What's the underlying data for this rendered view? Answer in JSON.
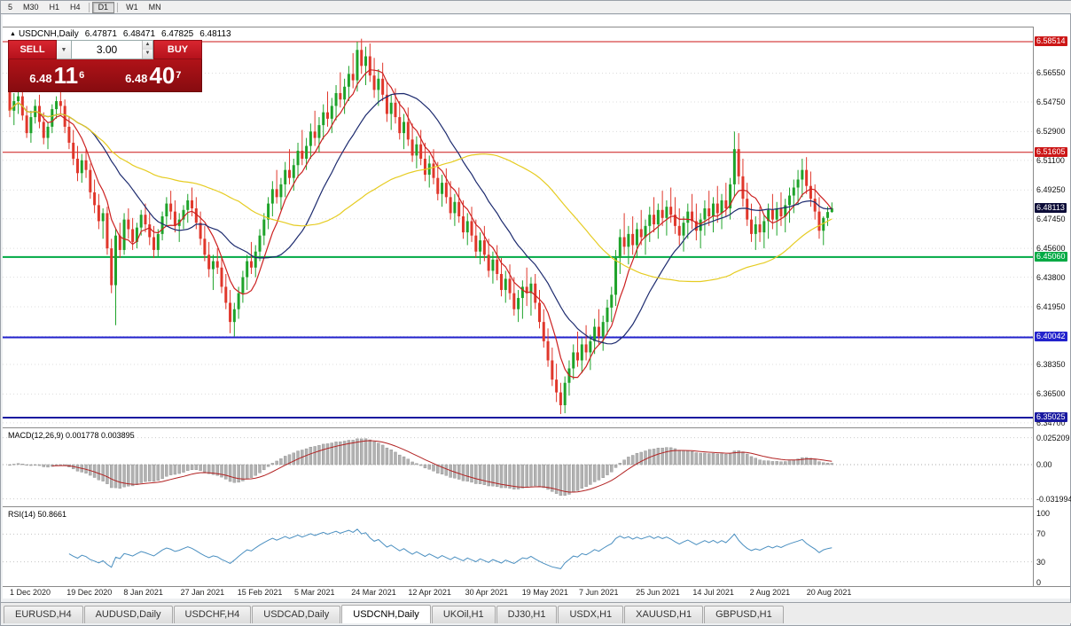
{
  "toolbar": {
    "timeframes": [
      "5",
      "M30",
      "H1",
      "H4",
      "D1",
      "W1",
      "MN"
    ],
    "active": "D1"
  },
  "chart_header": {
    "symbol": "USDCNH,Daily",
    "ohlc": {
      "open": "6.47871",
      "high": "6.48471",
      "low": "6.47825",
      "close": "6.48113"
    }
  },
  "trade_panel": {
    "sell_label": "SELL",
    "buy_label": "BUY",
    "volume": "3.00",
    "sell_price": {
      "base": "6.48",
      "pips": "11",
      "pt": "6"
    },
    "buy_price": {
      "base": "6.48",
      "pips": "40",
      "pt": "7"
    }
  },
  "indicators": {
    "macd_label": "MACD(12,26,9) 0.001778 0.003895",
    "rsi_label": "RSI(14) 50.8661"
  },
  "tabs": {
    "items": [
      "EURUSD,H4",
      "AUDUSD,Daily",
      "USDCHF,H4",
      "USDCAD,Daily",
      "USDCNH,Daily",
      "UKOil,H1",
      "DJ30,H1",
      "USDX,H1",
      "XAUUSD,H1",
      "GBPUSD,H1"
    ],
    "active_index": 4
  },
  "chart_data": {
    "type": "candlestick",
    "symbol": "USDCNH",
    "timeframe": "Daily",
    "up_color": "#1ea32a",
    "down_color": "#e0372b",
    "x_labels": [
      "1 Dec 2020",
      "19 Dec 2020",
      "8 Jan 2021",
      "27 Jan 2021",
      "15 Feb 2021",
      "5 Mar 2021",
      "24 Mar 2021",
      "12 Apr 2021",
      "30 Apr 2021",
      "19 May 2021",
      "7 Jun 2021",
      "25 Jun 2021",
      "14 Jul 2021",
      "2 Aug 2021",
      "20 Aug 2021"
    ],
    "y_ticks": [
      6.5655,
      6.5475,
      6.529,
      6.511,
      6.4925,
      6.4745,
      6.456,
      6.438,
      6.4195,
      6.401,
      6.3835,
      6.365,
      6.347
    ],
    "y_tick_labels": [
      "6.56550",
      "6.54750",
      "6.52900",
      "6.51100",
      "6.49250",
      "6.47450",
      "6.45600",
      "6.43800",
      "6.41950",
      "6.40100",
      "6.38350",
      "6.36500",
      "6.34700"
    ],
    "hlines": [
      {
        "price": 6.58514,
        "label": "6.58514",
        "color": "#cc1616",
        "thickness": 1
      },
      {
        "price": 6.51605,
        "label": "6.51605",
        "color": "#cc1616",
        "thickness": 1
      },
      {
        "price": 6.4506,
        "label": "6.45060",
        "color": "#00aa44",
        "thickness": 2
      },
      {
        "price": 6.40042,
        "label": "6.40042",
        "color": "#2222cc",
        "thickness": 2
      },
      {
        "price": 6.35025,
        "label": "6.35025",
        "color": "#1818a0",
        "thickness": 2
      }
    ],
    "current_price": {
      "value": 6.48113,
      "label": "6.48113",
      "color": "#0c0c38"
    },
    "moving_averages": [
      {
        "period": 7,
        "color": "#cc2020"
      },
      {
        "period": 20,
        "color": "#1c2a6e"
      },
      {
        "period": 55,
        "color": "#e6cc22"
      }
    ],
    "macd": {
      "params": [
        12,
        26,
        9
      ],
      "value": 0.001778,
      "signal_value": 0.003895,
      "axis_ticks": [
        0.025209,
        0,
        -0.031994
      ],
      "axis_labels": [
        "0.025209",
        "0.00",
        "-0.031994"
      ],
      "histogram_color": "#b2b2b2",
      "signal_color": "#b22222"
    },
    "rsi": {
      "period": 14,
      "value": 50.8661,
      "axis_ticks": [
        100,
        70,
        30,
        0
      ],
      "levels": [
        70,
        30
      ],
      "color": "#4a8fc0"
    },
    "candles": [
      [
        6.568,
        6.5725,
        6.538,
        6.542
      ],
      [
        6.542,
        6.553,
        6.533,
        6.548
      ],
      [
        6.548,
        6.5565,
        6.54,
        6.551
      ],
      [
        6.551,
        6.558,
        6.536,
        6.539
      ],
      [
        6.539,
        6.545,
        6.525,
        6.528
      ],
      [
        6.528,
        6.542,
        6.522,
        6.538
      ],
      [
        6.538,
        6.549,
        6.534,
        6.545
      ],
      [
        6.545,
        6.552,
        6.531,
        6.535
      ],
      [
        6.535,
        6.541,
        6.521,
        6.525
      ],
      [
        6.525,
        6.535,
        6.518,
        6.532
      ],
      [
        6.532,
        6.546,
        6.528,
        6.543
      ],
      [
        6.543,
        6.551,
        6.537,
        6.548
      ],
      [
        6.548,
        6.554,
        6.54,
        6.545
      ],
      [
        6.545,
        6.549,
        6.528,
        6.532
      ],
      [
        6.532,
        6.538,
        6.518,
        6.522
      ],
      [
        6.522,
        6.53,
        6.508,
        6.512
      ],
      [
        6.512,
        6.52,
        6.498,
        6.503
      ],
      [
        6.503,
        6.515,
        6.497,
        6.511
      ],
      [
        6.511,
        6.518,
        6.5,
        6.505
      ],
      [
        6.505,
        6.509,
        6.487,
        6.491
      ],
      [
        6.491,
        6.499,
        6.478,
        6.483
      ],
      [
        6.483,
        6.49,
        6.468,
        6.473
      ],
      [
        6.473,
        6.481,
        6.462,
        6.478
      ],
      [
        6.478,
        6.482,
        6.452,
        6.456
      ],
      [
        6.456,
        6.462,
        6.428,
        6.433
      ],
      [
        6.433,
        6.468,
        6.408,
        6.464
      ],
      [
        6.464,
        6.472,
        6.45,
        6.455
      ],
      [
        6.455,
        6.478,
        6.452,
        6.474
      ],
      [
        6.474,
        6.481,
        6.462,
        6.468
      ],
      [
        6.468,
        6.475,
        6.455,
        6.46
      ],
      [
        6.46,
        6.472,
        6.456,
        6.469
      ],
      [
        6.469,
        6.48,
        6.464,
        6.477
      ],
      [
        6.477,
        6.484,
        6.466,
        6.471
      ],
      [
        6.471,
        6.478,
        6.458,
        6.463
      ],
      [
        6.463,
        6.47,
        6.45,
        6.455
      ],
      [
        6.455,
        6.468,
        6.451,
        6.465
      ],
      [
        6.465,
        6.479,
        6.461,
        6.476
      ],
      [
        6.476,
        6.488,
        6.47,
        6.484
      ],
      [
        6.484,
        6.492,
        6.474,
        6.479
      ],
      [
        6.479,
        6.486,
        6.466,
        6.47
      ],
      [
        6.47,
        6.478,
        6.46,
        6.474
      ],
      [
        6.474,
        6.483,
        6.468,
        6.48
      ],
      [
        6.48,
        6.49,
        6.472,
        6.486
      ],
      [
        6.486,
        6.494,
        6.476,
        6.481
      ],
      [
        6.481,
        6.488,
        6.468,
        6.472
      ],
      [
        6.472,
        6.479,
        6.458,
        6.462
      ],
      [
        6.462,
        6.47,
        6.448,
        6.452
      ],
      [
        6.452,
        6.46,
        6.438,
        6.443
      ],
      [
        6.443,
        6.452,
        6.43,
        6.448
      ],
      [
        6.448,
        6.456,
        6.44,
        6.444
      ],
      [
        6.444,
        6.45,
        6.428,
        6.432
      ],
      [
        6.432,
        6.44,
        6.418,
        6.422
      ],
      [
        6.422,
        6.43,
        6.403,
        6.41
      ],
      [
        6.41,
        6.422,
        6.401,
        6.418
      ],
      [
        6.418,
        6.432,
        6.412,
        6.428
      ],
      [
        6.428,
        6.442,
        6.422,
        6.438
      ],
      [
        6.438,
        6.452,
        6.43,
        6.448
      ],
      [
        6.448,
        6.46,
        6.44,
        6.444
      ],
      [
        6.444,
        6.458,
        6.438,
        6.454
      ],
      [
        6.454,
        6.468,
        6.448,
        6.464
      ],
      [
        6.464,
        6.478,
        6.458,
        6.474
      ],
      [
        6.474,
        6.488,
        6.468,
        6.484
      ],
      [
        6.484,
        6.498,
        6.476,
        6.493
      ],
      [
        6.493,
        6.505,
        6.484,
        6.488
      ],
      [
        6.488,
        6.5,
        6.48,
        6.496
      ],
      [
        6.496,
        6.51,
        6.488,
        6.505
      ],
      [
        6.505,
        6.518,
        6.496,
        6.5
      ],
      [
        6.5,
        6.512,
        6.492,
        6.508
      ],
      [
        6.508,
        6.522,
        6.5,
        6.517
      ],
      [
        6.517,
        6.53,
        6.508,
        6.512
      ],
      [
        6.512,
        6.525,
        6.505,
        6.52
      ],
      [
        6.52,
        6.534,
        6.512,
        6.529
      ],
      [
        6.529,
        6.542,
        6.52,
        6.525
      ],
      [
        6.525,
        6.538,
        6.516,
        6.533
      ],
      [
        6.533,
        6.546,
        6.524,
        6.541
      ],
      [
        6.541,
        6.554,
        6.532,
        6.537
      ],
      [
        6.537,
        6.55,
        6.528,
        6.545
      ],
      [
        6.545,
        6.558,
        6.536,
        6.553
      ],
      [
        6.553,
        6.566,
        6.544,
        6.549
      ],
      [
        6.549,
        6.562,
        6.54,
        6.557
      ],
      [
        6.557,
        6.57,
        6.548,
        6.565
      ],
      [
        6.565,
        6.578,
        6.556,
        6.561
      ],
      [
        6.561,
        6.5851,
        6.554,
        6.58
      ],
      [
        6.58,
        6.587,
        6.565,
        6.57
      ],
      [
        6.57,
        6.582,
        6.558,
        6.576
      ],
      [
        6.576,
        6.584,
        6.56,
        6.564
      ],
      [
        6.564,
        6.575,
        6.55,
        6.555
      ],
      [
        6.555,
        6.568,
        6.545,
        6.562
      ],
      [
        6.562,
        6.572,
        6.548,
        6.552
      ],
      [
        6.552,
        6.56,
        6.535,
        6.54
      ],
      [
        6.54,
        6.552,
        6.53,
        6.547
      ],
      [
        6.547,
        6.556,
        6.534,
        6.538
      ],
      [
        6.538,
        6.548,
        6.524,
        6.528
      ],
      [
        6.528,
        6.54,
        6.518,
        6.535
      ],
      [
        6.535,
        6.544,
        6.52,
        6.524
      ],
      [
        6.524,
        6.534,
        6.51,
        6.514
      ],
      [
        6.514,
        6.526,
        6.506,
        6.521
      ],
      [
        6.521,
        6.53,
        6.508,
        6.512
      ],
      [
        6.512,
        6.522,
        6.498,
        6.502
      ],
      [
        6.502,
        6.514,
        6.494,
        6.509
      ],
      [
        6.509,
        6.518,
        6.496,
        6.5
      ],
      [
        6.5,
        6.51,
        6.486,
        6.49
      ],
      [
        6.49,
        6.502,
        6.482,
        6.497
      ],
      [
        6.497,
        6.506,
        6.484,
        6.488
      ],
      [
        6.488,
        6.498,
        6.474,
        6.478
      ],
      [
        6.478,
        6.49,
        6.47,
        6.485
      ],
      [
        6.485,
        6.494,
        6.472,
        6.476
      ],
      [
        6.476,
        6.486,
        6.462,
        6.466
      ],
      [
        6.466,
        6.478,
        6.458,
        6.473
      ],
      [
        6.473,
        6.482,
        6.46,
        6.464
      ],
      [
        6.464,
        6.474,
        6.45,
        6.454
      ],
      [
        6.454,
        6.466,
        6.446,
        6.461
      ],
      [
        6.461,
        6.47,
        6.448,
        6.452
      ],
      [
        6.452,
        6.462,
        6.438,
        6.442
      ],
      [
        6.442,
        6.454,
        6.434,
        6.449
      ],
      [
        6.449,
        6.458,
        6.436,
        6.44
      ],
      [
        6.44,
        6.45,
        6.426,
        6.43
      ],
      [
        6.43,
        6.442,
        6.422,
        6.437
      ],
      [
        6.437,
        6.446,
        6.424,
        6.428
      ],
      [
        6.428,
        6.438,
        6.414,
        6.418
      ],
      [
        6.418,
        6.43,
        6.41,
        6.425
      ],
      [
        6.425,
        6.436,
        6.412,
        6.432
      ],
      [
        6.432,
        6.444,
        6.42,
        6.428
      ],
      [
        6.428,
        6.438,
        6.414,
        6.434
      ],
      [
        6.434,
        6.44,
        6.418,
        6.422
      ],
      [
        6.422,
        6.43,
        6.406,
        6.41
      ],
      [
        6.41,
        6.418,
        6.394,
        6.398
      ],
      [
        6.398,
        6.406,
        6.382,
        6.386
      ],
      [
        6.386,
        6.394,
        6.37,
        6.374
      ],
      [
        6.374,
        6.384,
        6.36,
        6.366
      ],
      [
        6.366,
        6.372,
        6.3525,
        6.358
      ],
      [
        6.358,
        6.376,
        6.353,
        6.372
      ],
      [
        6.372,
        6.386,
        6.364,
        6.381
      ],
      [
        6.381,
        6.396,
        6.374,
        6.391
      ],
      [
        6.391,
        6.404,
        6.382,
        6.386
      ],
      [
        6.386,
        6.4,
        6.378,
        6.396
      ],
      [
        6.396,
        6.408,
        6.386,
        6.391
      ],
      [
        6.391,
        6.402,
        6.38,
        6.398
      ],
      [
        6.398,
        6.412,
        6.39,
        6.407
      ],
      [
        6.407,
        6.418,
        6.396,
        6.401
      ],
      [
        6.401,
        6.414,
        6.392,
        6.41
      ],
      [
        6.41,
        6.424,
        6.402,
        6.419
      ],
      [
        6.419,
        6.432,
        6.41,
        6.427
      ],
      [
        6.427,
        6.455,
        6.42,
        6.45
      ],
      [
        6.45,
        6.468,
        6.44,
        6.463
      ],
      [
        6.463,
        6.478,
        6.452,
        6.457
      ],
      [
        6.457,
        6.47,
        6.446,
        6.465
      ],
      [
        6.465,
        6.476,
        6.452,
        6.458
      ],
      [
        6.458,
        6.472,
        6.45,
        6.468
      ],
      [
        6.468,
        6.48,
        6.458,
        6.463
      ],
      [
        6.463,
        6.474,
        6.452,
        6.47
      ],
      [
        6.47,
        6.482,
        6.46,
        6.477
      ],
      [
        6.477,
        6.488,
        6.466,
        6.471
      ],
      [
        6.471,
        6.484,
        6.462,
        6.48
      ],
      [
        6.48,
        6.492,
        6.47,
        6.475
      ],
      [
        6.475,
        6.486,
        6.464,
        6.482
      ],
      [
        6.482,
        6.494,
        6.472,
        6.477
      ],
      [
        6.477,
        6.488,
        6.465,
        6.47
      ],
      [
        6.47,
        6.481,
        6.458,
        6.464
      ],
      [
        6.464,
        6.476,
        6.454,
        6.472
      ],
      [
        6.472,
        6.484,
        6.462,
        6.479
      ],
      [
        6.479,
        6.49,
        6.468,
        6.473
      ],
      [
        6.473,
        6.484,
        6.461,
        6.467
      ],
      [
        6.467,
        6.478,
        6.456,
        6.474
      ],
      [
        6.474,
        6.486,
        6.464,
        6.481
      ],
      [
        6.481,
        6.492,
        6.47,
        6.476
      ],
      [
        6.476,
        6.488,
        6.466,
        6.484
      ],
      [
        6.484,
        6.495,
        6.472,
        6.478
      ],
      [
        6.478,
        6.49,
        6.468,
        6.486
      ],
      [
        6.486,
        6.497,
        6.476,
        6.481
      ],
      [
        6.481,
        6.5,
        6.474,
        6.496
      ],
      [
        6.496,
        6.529,
        6.488,
        6.518
      ],
      [
        6.518,
        6.528,
        6.496,
        6.501
      ],
      [
        6.501,
        6.512,
        6.482,
        6.487
      ],
      [
        6.487,
        6.497,
        6.47,
        6.474
      ],
      [
        6.474,
        6.484,
        6.46,
        6.465
      ],
      [
        6.465,
        6.476,
        6.455,
        6.471
      ],
      [
        6.471,
        6.482,
        6.46,
        6.466
      ],
      [
        6.466,
        6.477,
        6.456,
        6.473
      ],
      [
        6.473,
        6.484,
        6.462,
        6.48
      ],
      [
        6.48,
        6.49,
        6.468,
        6.474
      ],
      [
        6.474,
        6.485,
        6.464,
        6.481
      ],
      [
        6.481,
        6.491,
        6.47,
        6.476
      ],
      [
        6.476,
        6.487,
        6.466,
        6.483
      ],
      [
        6.483,
        6.494,
        6.472,
        6.489
      ],
      [
        6.489,
        6.499,
        6.478,
        6.494
      ],
      [
        6.494,
        6.505,
        6.483,
        6.499
      ],
      [
        6.499,
        6.512,
        6.488,
        6.505
      ],
      [
        6.505,
        6.513,
        6.49,
        6.495
      ],
      [
        6.495,
        6.504,
        6.482,
        6.487
      ],
      [
        6.487,
        6.496,
        6.474,
        6.479
      ],
      [
        6.479,
        6.488,
        6.462,
        6.467
      ],
      [
        6.467,
        6.476,
        6.458,
        6.475
      ],
      [
        6.475,
        6.482,
        6.47,
        6.4787
      ],
      [
        6.47871,
        6.48471,
        6.47825,
        6.48113
      ]
    ]
  }
}
